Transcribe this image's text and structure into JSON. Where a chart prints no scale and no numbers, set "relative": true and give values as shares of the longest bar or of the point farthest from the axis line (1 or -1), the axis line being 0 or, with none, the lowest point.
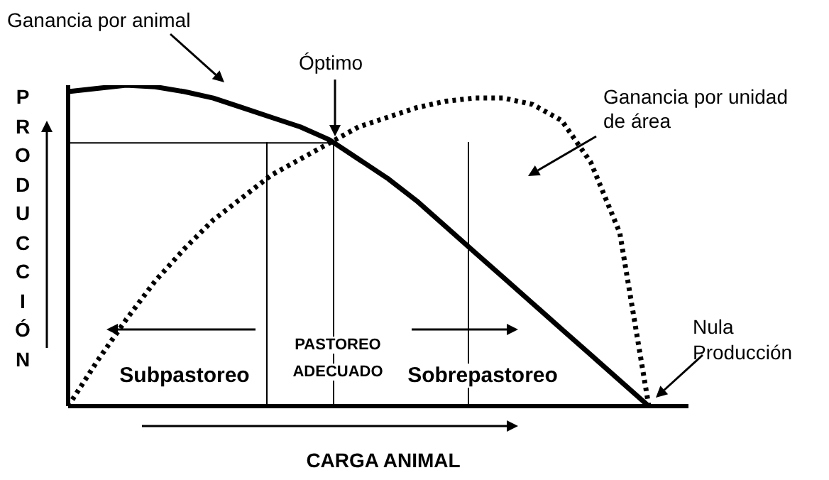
{
  "chart_data": {
    "type": "line",
    "relative": true,
    "xlabel": "CARGA ANIMAL",
    "ylabel": "PRODUCCIÓN",
    "ref_lines": [
      {
        "axis": "y",
        "value": 0.82,
        "color": "#000000"
      }
    ],
    "grid": false,
    "legend": false,
    "marker": "none",
    "categories": [
      null,
      null,
      null,
      null,
      null,
      null,
      null,
      null,
      null,
      null,
      null,
      null,
      null,
      null,
      null,
      null,
      null,
      null,
      null,
      null,
      null
    ],
    "series": [
      {
        "name": "Ganancia por animal",
        "color": "#000000",
        "line_style": "solid",
        "values": [
          0.98,
          0.99,
          1,
          0.995,
          0.98,
          0.96,
          0.93,
          0.9,
          0.87,
          0.83,
          0.77,
          0.71,
          0.64,
          0.56,
          0.48,
          0.4,
          0.32,
          0.24,
          0.16,
          0.08,
          0
        ]
      },
      {
        "name": "Ganancia por unidad de área",
        "color": "#000000",
        "line_style": "dotted",
        "values": [
          0,
          0.14,
          0.27,
          0.39,
          0.49,
          0.58,
          0.65,
          0.72,
          0.77,
          0.82,
          0.87,
          0.9,
          0.93,
          0.95,
          0.96,
          0.96,
          0.94,
          0.89,
          0.76,
          0.54,
          0
        ]
      }
    ],
    "annotations": [
      "Óptimo",
      "Subpastoreo",
      "PASTOREO ADECUADO",
      "Sobrepastoreo",
      "Nula Producción"
    ]
  }
}
